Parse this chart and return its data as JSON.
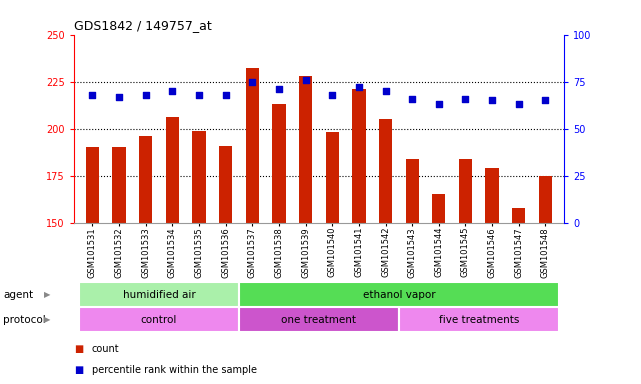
{
  "title": "GDS1842 / 149757_at",
  "samples": [
    "GSM101531",
    "GSM101532",
    "GSM101533",
    "GSM101534",
    "GSM101535",
    "GSM101536",
    "GSM101537",
    "GSM101538",
    "GSM101539",
    "GSM101540",
    "GSM101541",
    "GSM101542",
    "GSM101543",
    "GSM101544",
    "GSM101545",
    "GSM101546",
    "GSM101547",
    "GSM101548"
  ],
  "counts": [
    190,
    190,
    196,
    206,
    199,
    191,
    232,
    213,
    228,
    198,
    221,
    205,
    184,
    165,
    184,
    179,
    158,
    175
  ],
  "percentiles": [
    68,
    67,
    68,
    70,
    68,
    68,
    75,
    71,
    76,
    68,
    72,
    70,
    66,
    63,
    66,
    65,
    63,
    65
  ],
  "ylim_left": [
    150,
    250
  ],
  "ylim_right": [
    0,
    100
  ],
  "yticks_left": [
    150,
    175,
    200,
    225,
    250
  ],
  "yticks_right": [
    0,
    25,
    50,
    75,
    100
  ],
  "bar_color": "#cc2200",
  "dot_color": "#0000cc",
  "bar_bottom": 150,
  "agent_groups": [
    {
      "label": "humidified air",
      "start": 0,
      "end": 6,
      "color": "#aaf0aa"
    },
    {
      "label": "ethanol vapor",
      "start": 6,
      "end": 18,
      "color": "#55dd55"
    }
  ],
  "protocol_groups": [
    {
      "label": "control",
      "start": 0,
      "end": 6,
      "color": "#ee88ee"
    },
    {
      "label": "one treatment",
      "start": 6,
      "end": 12,
      "color": "#cc55cc"
    },
    {
      "label": "five treatments",
      "start": 12,
      "end": 18,
      "color": "#ee88ee"
    }
  ],
  "agent_label": "agent",
  "protocol_label": "protocol",
  "legend_count_color": "#cc2200",
  "legend_dot_color": "#0000cc",
  "background_color": "#ffffff",
  "plot_bg_color": "#ffffff",
  "dotted_lines": [
    175,
    200,
    225
  ]
}
